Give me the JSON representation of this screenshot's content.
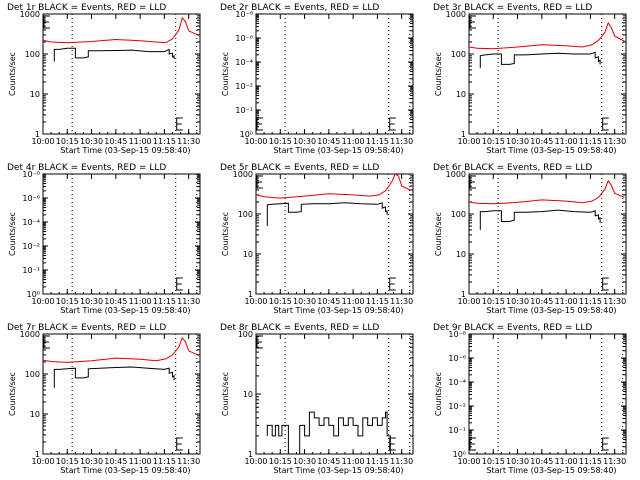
{
  "figure": {
    "background": "#ffffff",
    "colors": {
      "events": "#000000",
      "lld": "#e00000",
      "axes": "#000000",
      "marker": "#000000"
    }
  },
  "chart_data": [
    {
      "type": "line",
      "detector": "Det 1r",
      "title": "Det 1r BLACK = Events, RED = LLD",
      "xlabel": "Start Time (03-Sep-15 09:58:40)",
      "ylabel": "Counts/sec",
      "xticks": [
        "10:00",
        "10:15",
        "10:30",
        "10:45",
        "11:00",
        "11:15",
        "11:30"
      ],
      "xlim": [
        "10:00",
        "11:37"
      ],
      "yscale": "log",
      "ylim": [
        1,
        1000
      ],
      "yticks": [
        "1",
        "10",
        "100",
        "1000"
      ],
      "vlines": [
        "10:18",
        "11:22",
        "11:35"
      ],
      "markers": [
        "10:00",
        "11:22"
      ],
      "series": [
        {
          "label": "Events",
          "color": "#000000",
          "times": [
            "10:07",
            "10:07",
            "10:10",
            "10:15",
            "10:20",
            "10:20",
            "10:25",
            "10:28",
            "10:28",
            "10:35",
            "10:45",
            "10:55",
            "11:05",
            "11:15",
            "11:18",
            "11:18",
            "11:20",
            "11:20",
            "11:21",
            "11:21"
          ],
          "values": [
            65,
            130,
            130,
            140,
            140,
            80,
            80,
            85,
            120,
            120,
            122,
            125,
            115,
            115,
            130,
            100,
            105,
            85,
            90,
            75
          ]
        },
        {
          "label": "LLD",
          "color": "#e00000",
          "times": [
            "10:00",
            "10:05",
            "10:15",
            "10:30",
            "10:45",
            "11:00",
            "11:10",
            "11:16",
            "11:20",
            "11:24",
            "11:26",
            "11:28",
            "11:30",
            "11:34",
            "11:36"
          ],
          "values": [
            220,
            200,
            190,
            205,
            230,
            215,
            200,
            190,
            240,
            400,
            800,
            650,
            380,
            320,
            300
          ]
        }
      ]
    },
    {
      "type": "line",
      "detector": "Det 2r",
      "title": "Det 2r BLACK = Events, RED = LLD",
      "xlabel": "Start Time (03-Sep-15 09:58:40)",
      "ylabel": "Counts/sec",
      "xticks": [
        "10:00",
        "10:15",
        "10:30",
        "10:45",
        "11:00",
        "11:15",
        "11:30"
      ],
      "xlim": [
        "10:00",
        "11:37"
      ],
      "yscale": "log",
      "ylim": [
        1,
        1000000
      ],
      "yticks": [
        "10⁰",
        "10⁻¹",
        "10⁻²",
        "10⁻⁴",
        "10⁻⁶",
        "10⁻⁸"
      ],
      "vlines": [
        "10:18",
        "11:22",
        "11:35"
      ],
      "markers": [
        "10:00",
        "11:22"
      ],
      "series": []
    },
    {
      "type": "line",
      "detector": "Det 3r",
      "title": "Det 3r BLACK = Events, RED = LLD",
      "xlabel": "Start Time (03-Sep-15 09:58:40)",
      "ylabel": "Counts/sec",
      "xticks": [
        "10:00",
        "10:15",
        "10:30",
        "10:45",
        "11:00",
        "11:15",
        "11:30"
      ],
      "xlim": [
        "10:00",
        "11:37"
      ],
      "yscale": "log",
      "ylim": [
        1,
        1000
      ],
      "yticks": [
        "1",
        "10",
        "100",
        "1000"
      ],
      "vlines": [
        "10:18",
        "11:22",
        "11:35"
      ],
      "markers": [
        "10:00",
        "11:22"
      ],
      "series": [
        {
          "label": "Events",
          "color": "#000000",
          "times": [
            "10:07",
            "10:07",
            "10:10",
            "10:15",
            "10:20",
            "10:20",
            "10:25",
            "10:28",
            "10:28",
            "10:35",
            "10:45",
            "10:55",
            "11:05",
            "11:15",
            "11:18",
            "11:18",
            "11:20",
            "11:20",
            "11:21",
            "11:21"
          ],
          "values": [
            45,
            90,
            95,
            100,
            100,
            55,
            55,
            58,
            95,
            95,
            100,
            105,
            100,
            100,
            110,
            80,
            85,
            65,
            70,
            55
          ]
        },
        {
          "label": "LLD",
          "color": "#e00000",
          "times": [
            "10:00",
            "10:05",
            "10:15",
            "10:30",
            "10:45",
            "11:00",
            "11:10",
            "11:16",
            "11:20",
            "11:24",
            "11:26",
            "11:28",
            "11:30",
            "11:34",
            "11:36"
          ],
          "values": [
            150,
            140,
            135,
            150,
            170,
            160,
            150,
            170,
            220,
            350,
            600,
            450,
            280,
            230,
            210
          ]
        }
      ]
    },
    {
      "type": "line",
      "detector": "Det 4r",
      "title": "Det 4r BLACK = Events, RED = LLD",
      "xlabel": "Start Time (03-Sep-15 09:58:40)",
      "ylabel": "Counts/sec",
      "xticks": [
        "10:00",
        "10:15",
        "10:30",
        "10:45",
        "11:00",
        "11:15",
        "11:30"
      ],
      "xlim": [
        "10:00",
        "11:37"
      ],
      "yscale": "log",
      "ylim": [
        1,
        1000000
      ],
      "yticks": [
        "10⁰",
        "10⁻¹",
        "10⁻²",
        "10⁻⁴",
        "10⁻⁶",
        "10⁻⁸"
      ],
      "vlines": [
        "10:18",
        "11:22",
        "11:35"
      ],
      "markers": [
        "11:22"
      ],
      "series": []
    },
    {
      "type": "line",
      "detector": "Det 5r",
      "title": "Det 5r BLACK = Events, RED = LLD",
      "xlabel": "Start Time (03-Sep-15 09:58:40)",
      "ylabel": "Counts/sec",
      "xticks": [
        "10:00",
        "10:15",
        "10:30",
        "10:45",
        "11:00",
        "11:15",
        "11:30"
      ],
      "xlim": [
        "10:00",
        "11:37"
      ],
      "yscale": "log",
      "ylim": [
        1,
        1000
      ],
      "yticks": [
        "1",
        "10",
        "100",
        "1000"
      ],
      "vlines": [
        "10:18",
        "11:22",
        "11:35"
      ],
      "markers": [
        "10:00",
        "11:22"
      ],
      "series": [
        {
          "label": "Events",
          "color": "#000000",
          "times": [
            "10:07",
            "10:07",
            "10:10",
            "10:15",
            "10:20",
            "10:20",
            "10:25",
            "10:28",
            "10:28",
            "10:35",
            "10:45",
            "10:55",
            "11:05",
            "11:15",
            "11:18",
            "11:18",
            "11:20",
            "11:20",
            "11:21",
            "11:21"
          ],
          "values": [
            50,
            170,
            175,
            180,
            185,
            110,
            110,
            115,
            175,
            180,
            180,
            190,
            180,
            175,
            190,
            140,
            150,
            115,
            120,
            95
          ]
        },
        {
          "label": "LLD",
          "color": "#e00000",
          "times": [
            "10:00",
            "10:05",
            "10:15",
            "10:30",
            "10:45",
            "11:00",
            "11:10",
            "11:16",
            "11:20",
            "11:24",
            "11:26",
            "11:28",
            "11:30",
            "11:34",
            "11:36"
          ],
          "values": [
            300,
            270,
            250,
            280,
            320,
            300,
            280,
            300,
            380,
            650,
            1000,
            900,
            500,
            420,
            390
          ]
        }
      ]
    },
    {
      "type": "line",
      "detector": "Det 6r",
      "title": "Det 6r BLACK = Events, RED = LLD",
      "xlabel": "Start Time (03-Sep-15 09:58:40)",
      "ylabel": "Counts/sec",
      "xticks": [
        "10:00",
        "10:15",
        "10:30",
        "10:45",
        "11:00",
        "11:15",
        "11:30"
      ],
      "xlim": [
        "10:00",
        "11:37"
      ],
      "yscale": "log",
      "ylim": [
        1,
        1000
      ],
      "yticks": [
        "1",
        "10",
        "100",
        "1000"
      ],
      "vlines": [
        "10:18",
        "11:22",
        "11:35"
      ],
      "markers": [
        "10:00",
        "11:22"
      ],
      "series": [
        {
          "label": "Events",
          "color": "#000000",
          "times": [
            "10:07",
            "10:07",
            "10:10",
            "10:15",
            "10:20",
            "10:20",
            "10:25",
            "10:28",
            "10:28",
            "10:35",
            "10:45",
            "10:55",
            "11:05",
            "11:15",
            "11:18",
            "11:18",
            "11:20",
            "11:20",
            "11:21",
            "11:21"
          ],
          "values": [
            40,
            115,
            115,
            120,
            120,
            65,
            65,
            70,
            110,
            110,
            115,
            125,
            115,
            110,
            120,
            90,
            95,
            75,
            80,
            60
          ]
        },
        {
          "label": "LLD",
          "color": "#e00000",
          "times": [
            "10:00",
            "10:05",
            "10:15",
            "10:30",
            "10:45",
            "11:00",
            "11:10",
            "11:16",
            "11:20",
            "11:24",
            "11:26",
            "11:28",
            "11:30",
            "11:34",
            "11:36"
          ],
          "values": [
            200,
            185,
            180,
            195,
            225,
            210,
            190,
            210,
            260,
            420,
            680,
            520,
            330,
            280,
            260
          ]
        }
      ]
    },
    {
      "type": "line",
      "detector": "Det 7r",
      "title": "Det 7r BLACK = Events, RED = LLD",
      "xlabel": "Start Time (03-Sep-15 09:58:40)",
      "ylabel": "Counts/sec",
      "xticks": [
        "10:00",
        "10:15",
        "10:30",
        "10:45",
        "11:00",
        "11:15",
        "11:30"
      ],
      "xlim": [
        "10:00",
        "11:37"
      ],
      "yscale": "log",
      "ylim": [
        1,
        1000
      ],
      "yticks": [
        "1",
        "10",
        "100",
        "1000"
      ],
      "vlines": [
        "10:18",
        "11:22",
        "11:35"
      ],
      "markers": [
        "10:00",
        "11:22"
      ],
      "series": [
        {
          "label": "Events",
          "color": "#000000",
          "times": [
            "10:07",
            "10:07",
            "10:10",
            "10:15",
            "10:20",
            "10:20",
            "10:25",
            "10:28",
            "10:28",
            "10:35",
            "10:45",
            "10:55",
            "11:05",
            "11:15",
            "11:18",
            "11:18",
            "11:20",
            "11:20",
            "11:21",
            "11:21"
          ],
          "values": [
            45,
            130,
            130,
            135,
            140,
            80,
            80,
            85,
            135,
            140,
            145,
            150,
            140,
            130,
            140,
            105,
            110,
            85,
            90,
            70
          ]
        },
        {
          "label": "LLD",
          "color": "#e00000",
          "times": [
            "10:00",
            "10:05",
            "10:15",
            "10:30",
            "10:45",
            "11:00",
            "11:10",
            "11:16",
            "11:20",
            "11:24",
            "11:26",
            "11:28",
            "11:30",
            "11:34",
            "11:36"
          ],
          "values": [
            220,
            205,
            195,
            215,
            250,
            235,
            215,
            240,
            300,
            480,
            800,
            650,
            380,
            320,
            300
          ]
        }
      ]
    },
    {
      "type": "line",
      "detector": "Det 8r",
      "title": "Det 8r BLACK = Events, RED = LLD",
      "xlabel": "Start Time (03-Sep-15 09:58:40)",
      "ylabel": "Counts/sec",
      "xticks": [
        "10:00",
        "10:15",
        "10:30",
        "10:45",
        "11:00",
        "11:15",
        "11:30"
      ],
      "xlim": [
        "10:00",
        "11:37"
      ],
      "yscale": "log",
      "ylim": [
        1,
        100
      ],
      "yticks": [
        "1",
        "10",
        "100"
      ],
      "vlines": [
        "10:18",
        "11:22",
        "11:35"
      ],
      "markers": [
        "10:00",
        "11:22"
      ],
      "series": [
        {
          "label": "Events",
          "color": "#000000",
          "times": [
            "10:07",
            "10:07",
            "10:10",
            "10:10",
            "10:12",
            "10:12",
            "10:14",
            "10:14",
            "10:16",
            "10:16",
            "10:20",
            "10:20",
            "10:27",
            "10:27",
            "10:30",
            "10:30",
            "10:33",
            "10:33",
            "10:36",
            "10:36",
            "10:39",
            "10:39",
            "10:42",
            "10:42",
            "10:45",
            "10:45",
            "10:48",
            "10:48",
            "10:51",
            "10:51",
            "10:54",
            "10:54",
            "10:57",
            "10:57",
            "11:00",
            "11:00",
            "11:03",
            "11:03",
            "11:06",
            "11:06",
            "11:09",
            "11:09",
            "11:12",
            "11:12",
            "11:15",
            "11:15",
            "11:18",
            "11:18",
            "11:20",
            "11:20",
            "11:21",
            "11:21",
            "11:23",
            "11:23"
          ],
          "values": [
            2,
            3,
            3,
            2,
            2,
            3,
            3,
            2,
            2,
            3,
            3,
            1,
            1,
            3,
            3,
            2,
            2,
            5,
            5,
            4,
            4,
            3,
            3,
            4,
            4,
            3,
            3,
            2,
            2,
            4,
            4,
            3,
            3,
            4,
            4,
            3,
            3,
            2,
            2,
            4,
            4,
            3,
            3,
            4,
            4,
            3,
            3,
            4,
            4,
            5,
            5,
            2,
            2,
            1
          ]
        }
      ]
    },
    {
      "type": "line",
      "detector": "Det 9r",
      "title": "Det 9r BLACK = Events, RED = LLD",
      "xlabel": "Start Time (03-Sep-15 09:58:40)",
      "ylabel": "Counts/sec",
      "xticks": [
        "10:00",
        "10:15",
        "10:30",
        "10:45",
        "11:00",
        "11:15",
        "11:30"
      ],
      "xlim": [
        "10:00",
        "11:37"
      ],
      "yscale": "log",
      "ylim": [
        1,
        1000000
      ],
      "yticks": [
        "10⁰",
        "10⁻¹",
        "10⁻²",
        "10⁻⁴",
        "10⁻⁶",
        "10⁻⁸"
      ],
      "vlines": [
        "10:18",
        "11:22",
        "11:35"
      ],
      "markers": [
        "10:00",
        "11:22"
      ],
      "series": []
    }
  ]
}
